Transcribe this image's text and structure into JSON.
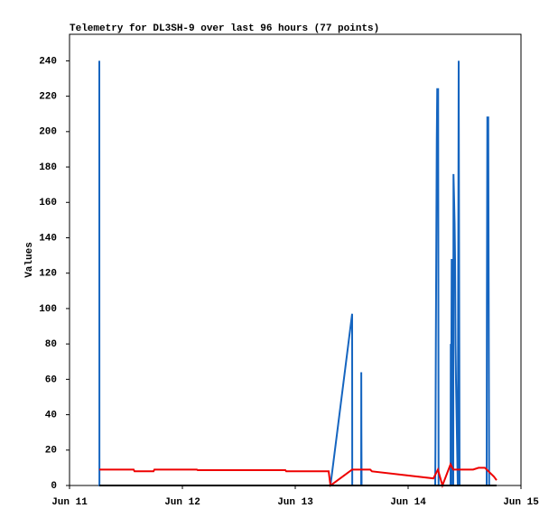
{
  "chart_data": {
    "type": "line",
    "title": "Telemetry for DL3SH-9 over last 96 hours (77 points)",
    "y_label": "Values",
    "xlim": [
      0,
      4
    ],
    "xticks": [
      {
        "value": 0,
        "label": "Jun 11"
      },
      {
        "value": 1,
        "label": "Jun 12"
      },
      {
        "value": 2,
        "label": "Jun 13"
      },
      {
        "value": 3,
        "label": "Jun 14"
      },
      {
        "value": 4,
        "label": "Jun 15"
      }
    ],
    "ylim": [
      0,
      255
    ],
    "yticks": [
      0,
      20,
      40,
      60,
      80,
      100,
      120,
      140,
      160,
      180,
      200,
      220,
      240
    ],
    "series": [
      {
        "color": "#1565c0",
        "x": [
          0.264,
          0.265,
          2.312,
          2.504,
          2.505,
          2.584,
          2.585,
          2.586,
          2.588,
          3.24,
          3.242,
          3.246,
          3.25,
          3.254,
          3.258,
          3.266,
          3.27,
          3.376,
          3.378,
          3.382,
          3.386,
          3.39,
          3.4,
          3.402,
          3.408,
          3.412,
          3.416,
          3.42,
          3.424,
          3.44,
          3.448,
          3.452,
          3.456,
          3.696,
          3.698,
          3.702,
          3.71,
          3.714,
          3.718
        ],
        "values": [
          240,
          0,
          0,
          97,
          0,
          0,
          64,
          32,
          0,
          0,
          20,
          84,
          140,
          196,
          224,
          224,
          0,
          0,
          80,
          40,
          128,
          0,
          0,
          176,
          160,
          148,
          128,
          80,
          60,
          0,
          240,
          120,
          0,
          0,
          104,
          208,
          208,
          104,
          0
        ]
      },
      {
        "color": "#ee0000",
        "x": [
          0.264,
          0.568,
          0.576,
          0.744,
          0.752,
          1.128,
          1.136,
          1.912,
          1.92,
          2.296,
          2.312,
          2.504,
          2.664,
          2.68,
          3.224,
          3.264,
          3.304,
          3.376,
          3.4,
          3.576,
          3.624,
          3.68,
          3.76,
          3.784
        ],
        "values": [
          9,
          9,
          8,
          8,
          9,
          9,
          8.7,
          8.7,
          8,
          8,
          0,
          9,
          9,
          8,
          4,
          9,
          0,
          12,
          9,
          9,
          10,
          10,
          5,
          3
        ]
      },
      {
        "color": "#000000",
        "x": [
          0.264,
          3.784
        ],
        "values": [
          0,
          0
        ]
      }
    ]
  }
}
